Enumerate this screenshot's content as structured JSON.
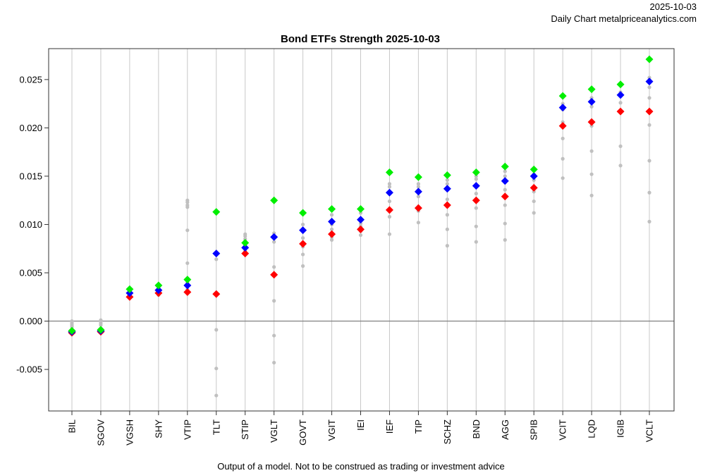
{
  "header": {
    "date": "2025-10-03",
    "source": "Daily Chart metalpriceanalytics.com"
  },
  "footer": {
    "disclaimer": "Output of a model. Not to be construed as trading or investment advice"
  },
  "colors": {
    "series_top": "#00ee00",
    "series_mid": "#0000ff",
    "series_low": "#ff0000",
    "history": "#c0c0c0",
    "vgrid": "#c8c8c8",
    "zero_line": "#808080",
    "frame": "#333333"
  },
  "chart_data": {
    "type": "scatter",
    "title": "Bond ETFs Strength 2025-10-03",
    "xlabel": "",
    "ylabel": "",
    "ylim": [
      -0.0093,
      0.0282
    ],
    "yticks": [
      -0.005,
      0.0,
      0.005,
      0.01,
      0.015,
      0.02,
      0.025
    ],
    "ytick_labels": [
      "-0.005",
      "0.000",
      "0.005",
      "0.010",
      "0.015",
      "0.020",
      "0.025"
    ],
    "zero_line": 0.0,
    "categories": [
      "BIL",
      "SGOV",
      "VGSH",
      "SHY",
      "VTIP",
      "TLT",
      "STIP",
      "VGLT",
      "GOVT",
      "VGIT",
      "IEI",
      "IEF",
      "TIP",
      "SCHZ",
      "BND",
      "AGG",
      "SPIB",
      "VCIT",
      "LQD",
      "IGIB",
      "VCLT"
    ],
    "series": [
      {
        "name": "green",
        "marker": "diamond",
        "values": [
          -0.001,
          -0.0009,
          0.0033,
          0.0037,
          0.0043,
          0.0113,
          0.0081,
          0.0125,
          0.0112,
          0.0116,
          0.0116,
          0.0154,
          0.0149,
          0.0151,
          0.0154,
          0.016,
          0.0157,
          0.0233,
          0.024,
          0.0245,
          0.0271
        ]
      },
      {
        "name": "blue",
        "marker": "diamond",
        "values": [
          -0.0011,
          -0.001,
          0.0029,
          0.0032,
          0.0037,
          0.007,
          0.0076,
          0.0087,
          0.0094,
          0.0103,
          0.0105,
          0.0133,
          0.0134,
          0.0137,
          0.014,
          0.0145,
          0.015,
          0.0221,
          0.0227,
          0.0234,
          0.0248
        ]
      },
      {
        "name": "red",
        "marker": "diamond",
        "values": [
          -0.0012,
          -0.0011,
          0.0025,
          0.0029,
          0.003,
          0.0028,
          0.007,
          0.0048,
          0.008,
          0.009,
          0.0095,
          0.0115,
          0.0117,
          0.012,
          0.0125,
          0.0129,
          0.0138,
          0.0202,
          0.0206,
          0.0217,
          0.0217
        ]
      }
    ],
    "history": [
      [
        0.0,
        -0.0002,
        -0.0004,
        -0.0006
      ],
      [
        0.0001,
        0.0,
        -0.0002,
        -0.0004
      ],
      [
        0.0031,
        0.0027,
        0.0024
      ],
      [
        0.0035,
        0.003,
        0.0027
      ],
      [
        0.0125,
        0.0123,
        0.012,
        0.0118,
        0.0094,
        0.006,
        0.004,
        0.0033
      ],
      [
        0.0064,
        -0.0009,
        -0.0049,
        -0.0077
      ],
      [
        0.009,
        0.0088,
        0.0085,
        0.0083,
        0.0078,
        0.0073
      ],
      [
        0.0091,
        0.0082,
        0.0056,
        0.0021,
        -0.0015,
        -0.0043
      ],
      [
        0.01,
        0.0086,
        0.0077,
        0.0069,
        0.0057
      ],
      [
        0.011,
        0.01,
        0.0095,
        0.0087,
        0.0084
      ],
      [
        0.0112,
        0.0101,
        0.0098,
        0.0093,
        0.0089
      ],
      [
        0.0142,
        0.0139,
        0.0124,
        0.0108,
        0.009
      ],
      [
        0.0142,
        0.0139,
        0.0129,
        0.0114,
        0.0102
      ],
      [
        0.0146,
        0.0142,
        0.0126,
        0.011,
        0.0095,
        0.0078
      ],
      [
        0.015,
        0.0147,
        0.0132,
        0.0117,
        0.0098,
        0.0082
      ],
      [
        0.0155,
        0.015,
        0.0136,
        0.012,
        0.0101,
        0.0084
      ],
      [
        0.0152,
        0.0146,
        0.0134,
        0.0124,
        0.0112
      ],
      [
        0.0225,
        0.0219,
        0.0206,
        0.0189,
        0.0168,
        0.0148
      ],
      [
        0.0231,
        0.0222,
        0.0202,
        0.0176,
        0.0152,
        0.013
      ],
      [
        0.0237,
        0.0226,
        0.0216,
        0.0181,
        0.0161
      ],
      [
        0.0252,
        0.0242,
        0.0231,
        0.0203,
        0.0166,
        0.0133,
        0.0103
      ]
    ]
  }
}
